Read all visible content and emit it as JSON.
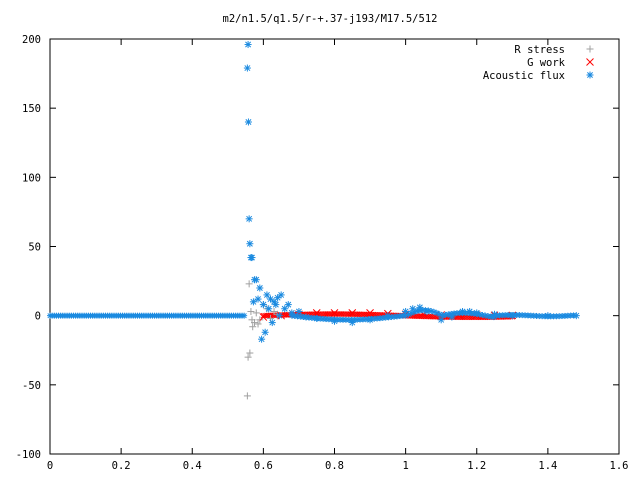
{
  "chart_data": {
    "type": "scatter",
    "title": "m2/n1.5/q1.5/r-+.37-j193/M17.5/512",
    "xlabel": "",
    "ylabel": "",
    "xlim": [
      0,
      1.6
    ],
    "ylim": [
      -100,
      200
    ],
    "x_ticks": [
      "0",
      "0.2",
      "0.4",
      "0.6",
      "0.8",
      "1",
      "1.2",
      "1.4",
      "1.6"
    ],
    "y_ticks": [
      "200",
      "150",
      "100",
      "50",
      "0",
      "-50",
      "-100"
    ],
    "legend_position": "top-right",
    "series": [
      {
        "name": "R stress",
        "marker": "plus",
        "color": "#a0a0a0",
        "x": [
          0.555,
          0.557,
          0.56,
          0.562,
          0.565,
          0.568,
          0.57,
          0.575,
          0.58,
          0.585,
          0.59,
          0.6,
          0.61,
          0.62,
          0.63,
          0.64
        ],
        "y": [
          -58,
          -30,
          23,
          -27,
          3,
          -3,
          -8,
          -5,
          2,
          -6,
          -3,
          8,
          5,
          -2,
          3,
          1
        ]
      },
      {
        "name": "G work",
        "marker": "cross",
        "color": "#ff0000",
        "x": [
          0.6,
          0.65,
          0.7,
          0.75,
          0.8,
          0.85,
          0.9,
          0.95,
          1.0,
          1.05,
          1.1,
          1.15,
          1.2,
          1.25,
          1.3
        ],
        "y": [
          -1,
          0,
          1,
          2,
          2,
          2,
          2,
          1.5,
          1,
          1,
          0.5,
          0.5,
          0.5,
          0.3,
          0.2
        ]
      },
      {
        "name": "Acoustic flux",
        "marker": "star",
        "color": "#1a8ae0",
        "x": [
          0.555,
          0.557,
          0.558,
          0.56,
          0.562,
          0.565,
          0.568,
          0.572,
          0.575,
          0.58,
          0.585,
          0.59,
          0.595,
          0.6,
          0.605,
          0.61,
          0.615,
          0.62,
          0.625,
          0.63,
          0.635,
          0.64,
          0.645,
          0.65,
          0.66,
          0.67,
          0.68,
          0.7,
          0.72,
          0.75,
          0.8,
          0.85,
          0.9,
          0.95,
          1.0,
          1.02,
          1.04,
          1.06,
          1.1,
          1.13,
          1.16,
          1.18,
          1.2,
          1.25,
          1.3,
          1.4,
          1.48
        ],
        "y": [
          179,
          196,
          140,
          70,
          52,
          42,
          42,
          10,
          26,
          26,
          12,
          20,
          -17,
          8,
          -12,
          15,
          5,
          12,
          -5,
          10,
          8,
          13,
          0,
          15,
          5,
          8,
          2,
          3,
          -1,
          -2,
          -4,
          -5,
          -3,
          0,
          3,
          5,
          6,
          3,
          -3,
          -1,
          3,
          3,
          2,
          1,
          0,
          0,
          0
        ]
      }
    ]
  }
}
